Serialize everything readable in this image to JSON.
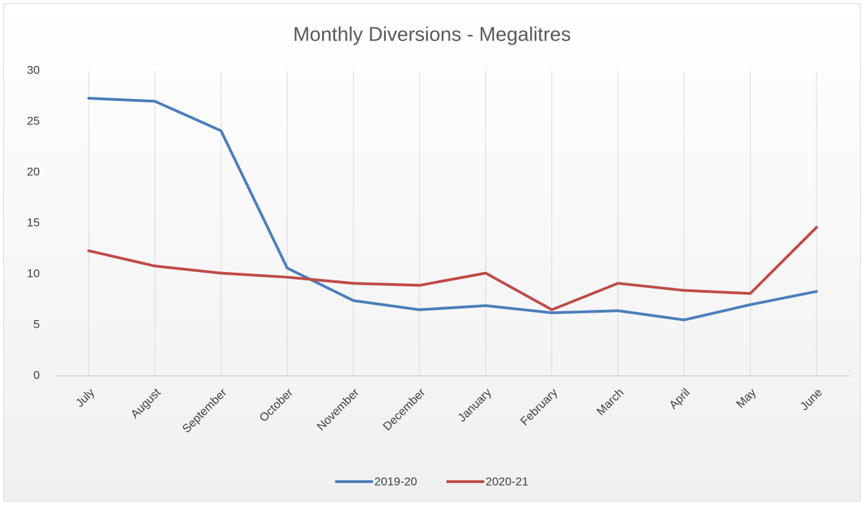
{
  "chart_data": {
    "type": "line",
    "title": "Monthly Diversions - Megalitres",
    "categories": [
      "July",
      "August",
      "September",
      "October",
      "November",
      "December",
      "January",
      "February",
      "March",
      "April",
      "May",
      "June"
    ],
    "series": [
      {
        "name": "2019-20",
        "color": "#4a7ebb",
        "values": [
          27.3,
          27.0,
          24.1,
          10.6,
          7.4,
          6.5,
          6.9,
          6.2,
          6.4,
          5.5,
          7.0,
          8.3
        ]
      },
      {
        "name": "2020-21",
        "color": "#be4b48",
        "values": [
          12.3,
          10.8,
          10.1,
          9.7,
          9.1,
          8.9,
          10.1,
          6.5,
          9.1,
          8.4,
          8.1,
          14.6
        ]
      }
    ],
    "ylim": [
      0,
      30
    ],
    "yticks": [
      0,
      5,
      10,
      15,
      20,
      25,
      30
    ],
    "grid": false,
    "legend": "bottom"
  }
}
